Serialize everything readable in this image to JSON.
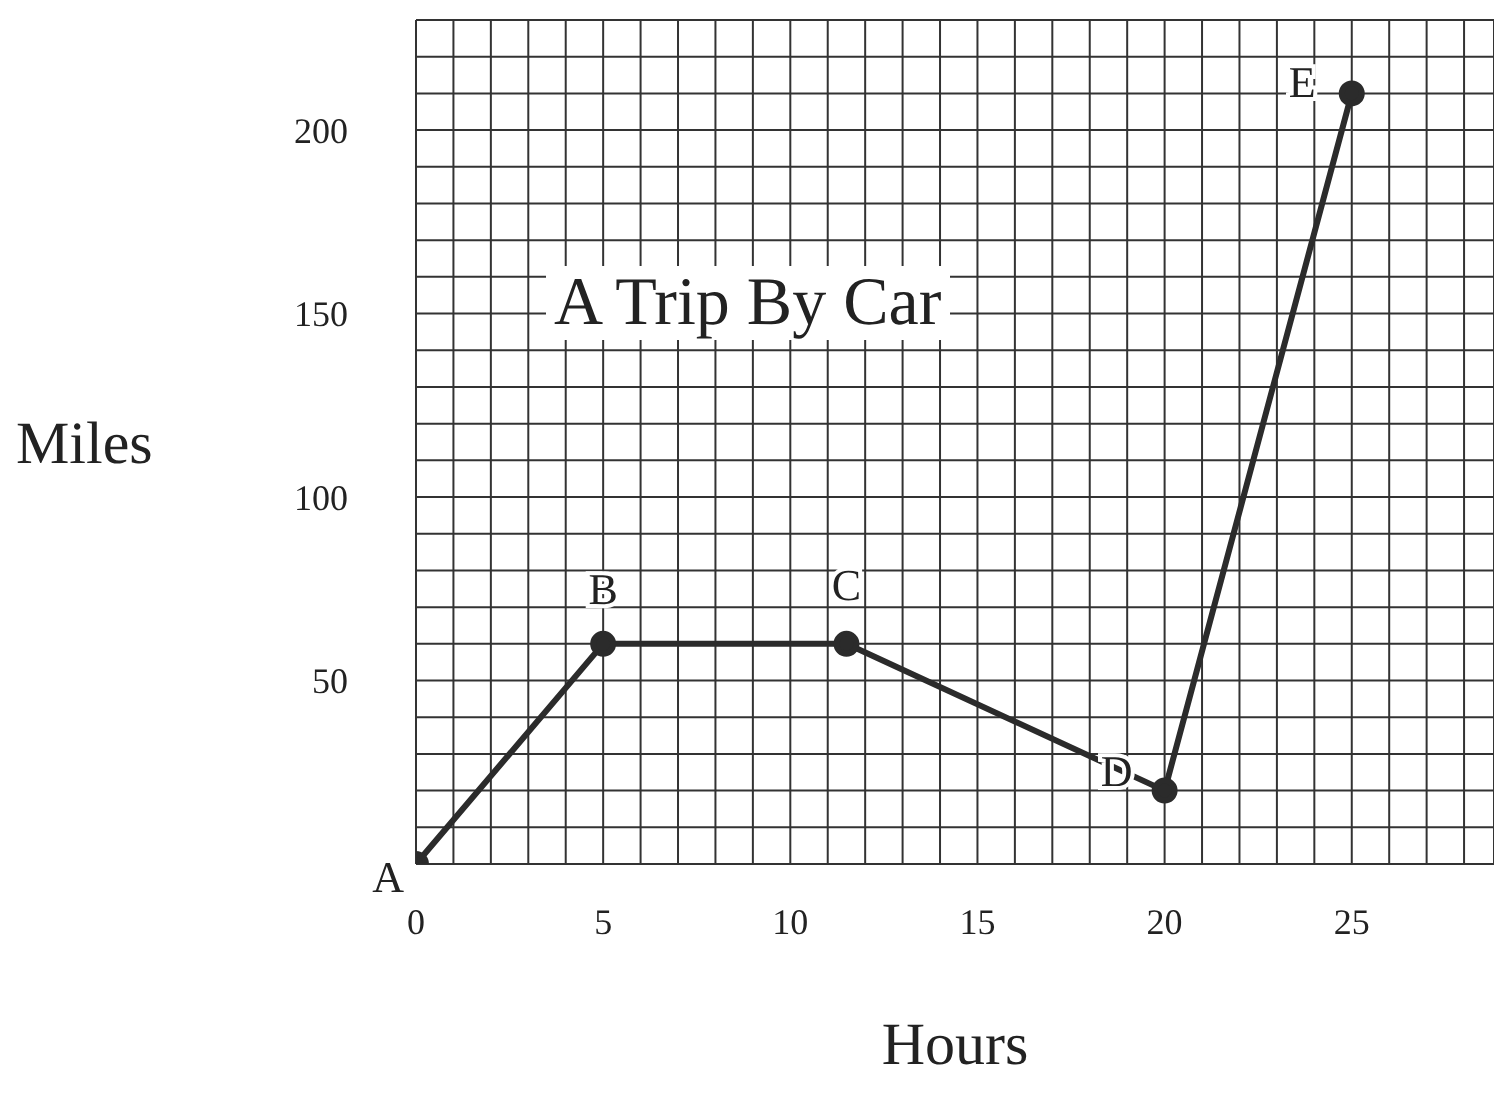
{
  "chart_data": {
    "type": "line",
    "title": "A Trip By Car",
    "xlabel": "Hours",
    "ylabel": "Miles",
    "x": [
      0,
      5,
      11.5,
      20,
      25
    ],
    "series": [
      {
        "color": "#2b2b2b",
        "values": [
          0,
          60,
          60,
          20,
          210
        ]
      }
    ],
    "xlim": [
      0,
      28.8
    ],
    "ylim": [
      0,
      230
    ],
    "xticks": [
      0,
      {
        "value": 1,
        "label": null
      },
      {
        "value": 2,
        "label": null
      },
      {
        "value": 3,
        "label": null
      },
      {
        "value": 4,
        "label": null
      },
      5,
      {
        "value": 6,
        "label": null
      },
      {
        "value": 7,
        "label": null
      },
      {
        "value": 8,
        "label": null
      },
      {
        "value": 9,
        "label": null
      },
      10,
      {
        "value": 11,
        "label": null
      },
      {
        "value": 12,
        "label": null
      },
      {
        "value": 13,
        "label": null
      },
      {
        "value": 14,
        "label": null
      },
      15,
      {
        "value": 16,
        "label": null
      },
      {
        "value": 17,
        "label": null
      },
      {
        "value": 18,
        "label": null
      },
      {
        "value": 19,
        "label": null
      },
      20,
      {
        "value": 21,
        "label": null
      },
      {
        "value": 22,
        "label": null
      },
      {
        "value": 23,
        "label": null
      },
      {
        "value": 24,
        "label": null
      },
      25,
      {
        "value": 26,
        "label": null
      },
      {
        "value": 27,
        "label": null
      },
      {
        "value": 28,
        "label": null
      }
    ],
    "yticks": [
      {
        "value": 0,
        "label": null
      },
      {
        "value": 10,
        "label": null
      },
      {
        "value": 20,
        "label": null
      },
      {
        "value": 30,
        "label": null
      },
      {
        "value": 40,
        "label": null
      },
      50,
      {
        "value": 60,
        "label": null
      },
      {
        "value": 70,
        "label": null
      },
      {
        "value": 80,
        "label": null
      },
      {
        "value": 90,
        "label": null
      },
      100,
      {
        "value": 110,
        "label": null
      },
      {
        "value": 120,
        "label": null
      },
      {
        "value": 130,
        "label": null
      },
      {
        "value": 140,
        "label": null
      },
      150,
      {
        "value": 160,
        "label": null
      },
      {
        "value": 170,
        "label": null
      },
      {
        "value": 180,
        "label": null
      },
      {
        "value": 190,
        "label": null
      },
      200,
      {
        "value": 210,
        "label": null
      },
      {
        "value": 220,
        "label": null
      },
      {
        "value": 230,
        "label": null
      }
    ],
    "grid": true,
    "marker": "circle",
    "line_style": "solid",
    "legend": false,
    "annotations": [
      {
        "text": "A",
        "x": 0,
        "y": 0
      },
      {
        "text": "B",
        "x": 5,
        "y": 60
      },
      {
        "text": "C",
        "x": 11.5,
        "y": 60
      },
      {
        "text": "D",
        "x": 20,
        "y": 20
      },
      {
        "text": "E",
        "x": 25,
        "y": 210
      }
    ]
  }
}
